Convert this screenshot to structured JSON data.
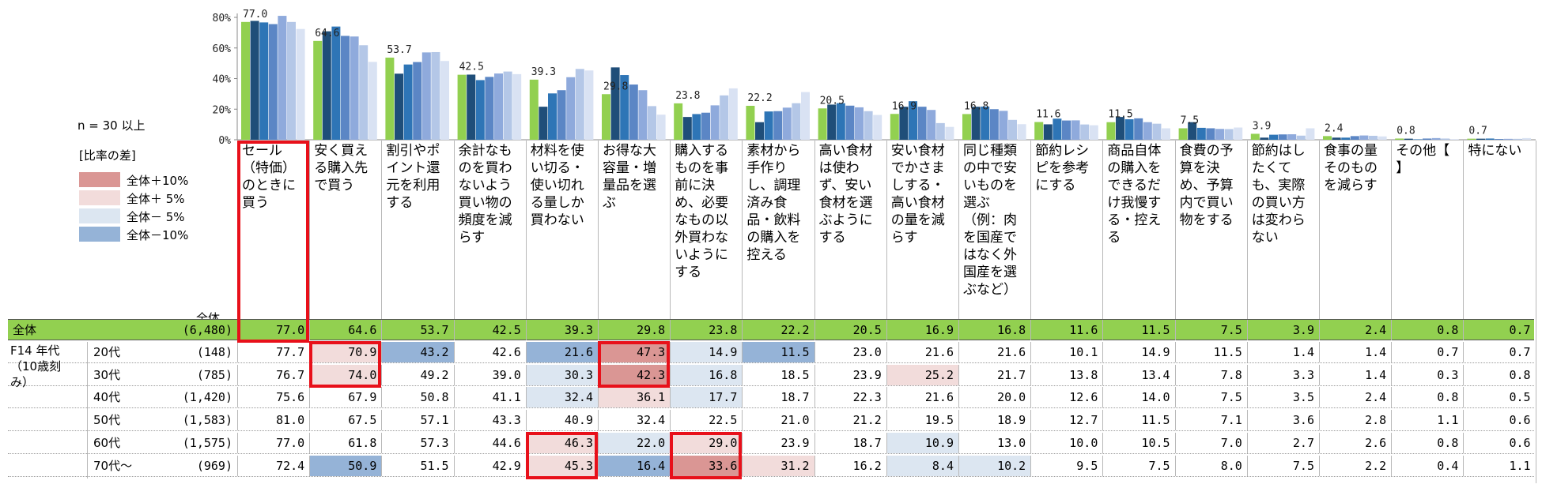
{
  "sample_note": "n = 30 以上",
  "legend": {
    "title": "[比率の差]",
    "items": [
      {
        "label": "全体＋10%",
        "color": "#da9694"
      },
      {
        "label": "全体＋ 5%",
        "color": "#f2dcdb"
      },
      {
        "label": "全体－ 5%",
        "color": "#dce6f1"
      },
      {
        "label": "全体－10%",
        "color": "#95b3d7"
      }
    ]
  },
  "group_label": "F14 年代\n（10歳刻\nみ）",
  "total_header": "全体",
  "colors": {
    "total_bar": "#92d050",
    "series": [
      "#1f4e79",
      "#2e75b6",
      "#5b86c5",
      "#8faadc",
      "#b4c7e7",
      "#d9e2f3"
    ],
    "plus10": "#da9694",
    "plus5": "#f2dcdb",
    "minus5": "#dce6f1",
    "minus10": "#95b3d7",
    "highlight": "#e8101a"
  },
  "chart_data": {
    "type": "bar",
    "ylim": [
      0,
      80
    ],
    "yticks": [
      "0%",
      "20%",
      "40%",
      "60%",
      "80%"
    ],
    "categories": [
      "セール（特価）のときに買う",
      "安く買える購入先で買う",
      "割引やポイント還元を利用する",
      "余計なものを買わないよう買い物の頻度を減らす",
      "材料を使い切る・使い切れる量しか買わない",
      "お得な大容量・増量品を選ぶ",
      "購入するものを事前に決め、必要なもの以外買わないようにする",
      "素材から手作りし、調理済み食品・飲料の購入を控える",
      "高い食材は使わず、安い食材を選ぶようにする",
      "安い食材でかさまし する・高い食材の量を減らす",
      "同じ種類の中で安いものを選ぶ（例：肉を国産ではなく外国産を選ぶなど）",
      "節約レシピを参考にする",
      "商品自体の購入をできるだけ我慢する・控える",
      "食費の予算を決め、予算内で買い物をする",
      "節約はしたくても、実際の買い方は変わらない",
      "食事の量そのものを減らす",
      "その他【 】",
      "特にない"
    ],
    "header_texts": [
      "セール\n（特価）\nのときに\n買う",
      "安く買え\nる購入先\nで買う",
      "割引やポ\nイント還\n元を利用\nする",
      "余計なも\nのを買わ\nないよう\n買い物の\n頻度を減\nらす",
      "材料を使\nい切る・\n使い切れ\nる量しか\n買わない",
      "お得な大\n容量・増\n量品を選\nぶ",
      "購入する\nものを事\n前に決\nめ、必要\nなもの以\n外買わな\nいように\nする",
      "素材から\n手作り\nし、調理\n済み食\n品・飲料\nの購入を\n控える",
      "高い食材\nは使わ\nず、安い\n食材を選\nぶように\nする",
      "安い食材\nでかさま\nしする・\n高い食材\nの量を減\nらす",
      "同じ種類\nの中で安\nいものを\n選ぶ\n（例：肉\nを国産で\nはなく外\n国産を選\nぶなど）",
      "節約レシ\nピを参考\nにする",
      "商品自体\nの購入を\nできるだ\nけ我慢す\nる・控え\nる",
      "食費の予\n算を決\nめ、予算\n内で買い\n物をする",
      "節約はし\nたくて\nも、実際\nの買い方\nは変わら\nない",
      "食事の量\nそのもの\nを減らす",
      "その他【\n】",
      "特にない"
    ],
    "total_labels": [
      "77.0",
      "64.6",
      "53.7",
      "42.5",
      "39.3",
      "29.8",
      "23.8",
      "22.2",
      "20.5",
      "16.9",
      "16.8",
      "11.6",
      "11.5",
      "7.5",
      "3.9",
      "2.4",
      "0.8",
      "0.7"
    ],
    "rows": [
      {
        "name": "全体",
        "n": "(6,480)",
        "values": [
          "77.0",
          "64.6",
          "53.7",
          "42.5",
          "39.3",
          "29.8",
          "23.8",
          "22.2",
          "20.5",
          "16.9",
          "16.8",
          "11.6",
          "11.5",
          "7.5",
          "3.9",
          "2.4",
          "0.8",
          "0.7"
        ]
      },
      {
        "name": "20代",
        "n": "(148)",
        "values": [
          "77.7",
          "70.9",
          "43.2",
          "42.6",
          "21.6",
          "47.3",
          "14.9",
          "11.5",
          "23.0",
          "21.6",
          "21.6",
          "10.1",
          "14.9",
          "11.5",
          "1.4",
          "1.4",
          "0.7",
          "0.7"
        ],
        "shade": [
          null,
          "plus5",
          "minus10",
          null,
          "minus10",
          "plus10",
          "minus5",
          "minus10",
          null,
          null,
          null,
          null,
          null,
          null,
          null,
          null,
          null,
          null
        ]
      },
      {
        "name": "30代",
        "n": "(785)",
        "values": [
          "76.7",
          "74.0",
          "49.2",
          "39.0",
          "30.3",
          "42.3",
          "16.8",
          "18.5",
          "23.9",
          "25.2",
          "21.7",
          "13.8",
          "13.4",
          "7.8",
          "3.3",
          "1.4",
          "0.3",
          "0.8"
        ],
        "shade": [
          null,
          "plus5",
          null,
          null,
          "minus5",
          "plus10",
          "minus5",
          null,
          null,
          "plus5",
          null,
          null,
          null,
          null,
          null,
          null,
          null,
          null
        ]
      },
      {
        "name": "40代",
        "n": "(1,420)",
        "values": [
          "75.6",
          "67.9",
          "50.8",
          "41.1",
          "32.4",
          "36.1",
          "17.7",
          "18.7",
          "22.3",
          "21.6",
          "20.0",
          "12.6",
          "14.0",
          "7.5",
          "3.5",
          "2.4",
          "0.8",
          "0.5"
        ],
        "shade": [
          null,
          null,
          null,
          null,
          "minus5",
          "plus5",
          "minus5",
          null,
          null,
          null,
          null,
          null,
          null,
          null,
          null,
          null,
          null,
          null
        ]
      },
      {
        "name": "50代",
        "n": "(1,583)",
        "values": [
          "81.0",
          "67.5",
          "57.1",
          "43.3",
          "40.9",
          "32.4",
          "22.5",
          "21.0",
          "21.2",
          "19.5",
          "18.9",
          "12.7",
          "11.5",
          "7.1",
          "3.6",
          "2.8",
          "1.1",
          "0.6"
        ]
      },
      {
        "name": "60代",
        "n": "(1,575)",
        "values": [
          "77.0",
          "61.8",
          "57.3",
          "44.6",
          "46.3",
          "22.0",
          "29.0",
          "23.9",
          "18.7",
          "10.9",
          "13.0",
          "10.0",
          "10.5",
          "7.0",
          "2.7",
          "2.6",
          "0.8",
          "0.6"
        ],
        "shade": [
          null,
          null,
          null,
          null,
          "plus5",
          "minus5",
          "plus5",
          null,
          null,
          "minus5",
          null,
          null,
          null,
          null,
          null,
          null,
          null,
          null
        ]
      },
      {
        "name": "70代〜",
        "n": "(969)",
        "values": [
          "72.4",
          "50.9",
          "51.5",
          "42.9",
          "45.3",
          "16.4",
          "33.6",
          "31.2",
          "16.2",
          "8.4",
          "10.2",
          "9.5",
          "7.5",
          "8.0",
          "7.5",
          "2.2",
          "0.4",
          "1.1"
        ],
        "shade": [
          null,
          "minus10",
          null,
          null,
          "plus5",
          "minus10",
          "plus10",
          "plus5",
          null,
          "minus5",
          "minus5",
          null,
          null,
          null,
          null,
          null,
          null,
          null
        ]
      }
    ],
    "highlights": [
      {
        "col": 0,
        "from_row": "header",
        "to_row": 0
      },
      {
        "col": 1,
        "from_row": 1,
        "to_row": 2
      },
      {
        "col": 5,
        "from_row": 1,
        "to_row": 2
      },
      {
        "col": 4,
        "from_row": 5,
        "to_row": 6
      },
      {
        "col": 6,
        "from_row": 5,
        "to_row": 6
      }
    ]
  }
}
